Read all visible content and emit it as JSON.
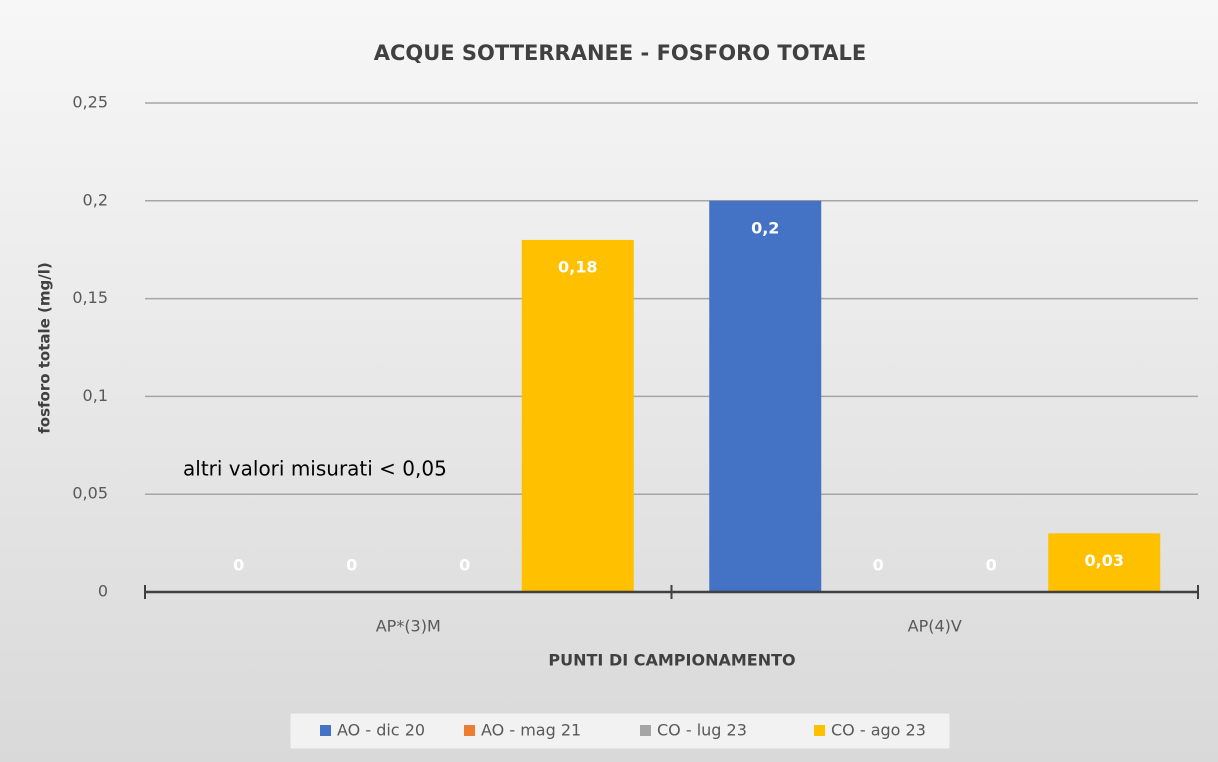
{
  "chart_data": {
    "type": "bar",
    "title": "ACQUE SOTTERRANEE - FOSFORO TOTALE",
    "x_label": "PUNTI DI CAMPIONAMENTO",
    "y_label": "fosforo totale (mg/l)",
    "annotation": "altri valori misurati < 0,05",
    "categories": [
      "AP*(3)M",
      "AP(4)V"
    ],
    "series": [
      {
        "name": "AO - dic 20",
        "color": "#4472c4",
        "values": [
          0,
          0.2
        ],
        "value_labels": [
          "0",
          "0,2"
        ]
      },
      {
        "name": "AO - mag 21",
        "color": "#ed7d31",
        "values": [
          0,
          0
        ],
        "value_labels": [
          "0",
          "0"
        ]
      },
      {
        "name": "CO - lug 23",
        "color": "#a5a5a5",
        "values": [
          0,
          0
        ],
        "value_labels": [
          "0",
          "0"
        ]
      },
      {
        "name": "CO - ago 23",
        "color": "#ffc000",
        "values": [
          0.18,
          0.03
        ],
        "value_labels": [
          "0,18",
          "0,03"
        ]
      }
    ],
    "ylim": [
      0,
      0.25
    ],
    "yticks": [
      0,
      {
        "value": 0.05,
        "label": "0,05"
      },
      {
        "value": 0.1,
        "label": "0,1"
      },
      {
        "value": 0.15,
        "label": "0,15"
      },
      {
        "value": 0.2,
        "label": "0,2"
      },
      {
        "value": 0.25,
        "label": "0,25"
      }
    ],
    "grid": true,
    "legend": "bottom"
  }
}
